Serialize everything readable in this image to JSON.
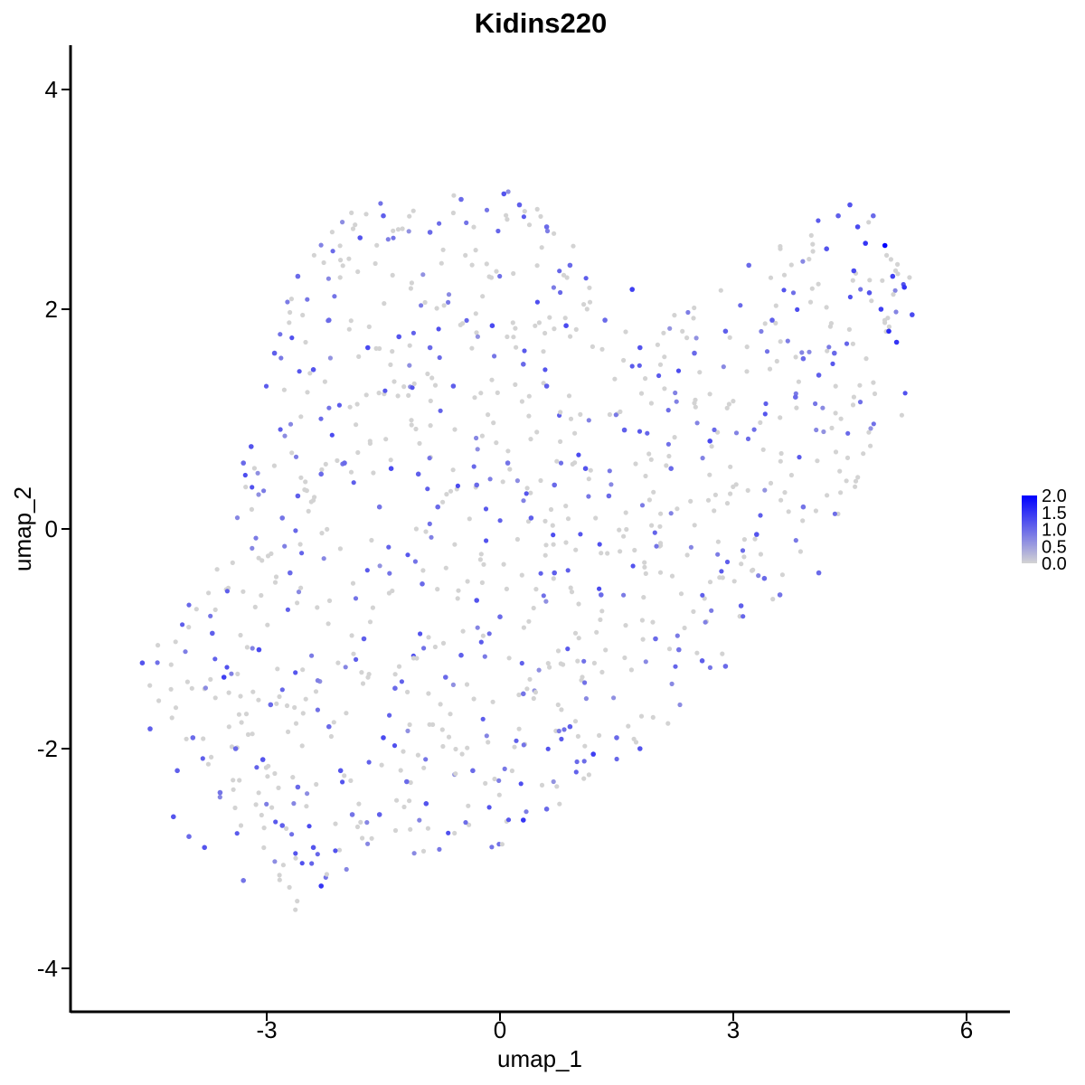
{
  "chart_data": {
    "type": "scatter",
    "title": "Kidins220",
    "xlabel": "umap_1",
    "ylabel": "umap_2",
    "xlim": [
      -5.45,
      6.55
    ],
    "ylim": [
      -4.35,
      4.4
    ],
    "xticks": [
      -3,
      0,
      3,
      6
    ],
    "xtick_labels": [
      "-3",
      "0",
      "3",
      "6"
    ],
    "yticks": [
      -4,
      -2,
      0,
      2,
      4
    ],
    "ytick_labels": [
      "-4",
      "-2",
      "0",
      "2",
      "4"
    ],
    "grid": false,
    "color_scale": {
      "low_color": "#d3d3d3",
      "high_color": "#0000ff",
      "min": 0,
      "max": 2.0,
      "ticks": [
        2.0,
        1.5,
        1.0,
        0.5,
        0.0
      ],
      "tick_labels": [
        "2.0",
        "1.5",
        "1.0",
        "0.5",
        "0.0"
      ],
      "legend_position": "right"
    },
    "points_note_free": true,
    "points": [
      [
        -4.6,
        -1.22,
        1.2
      ],
      [
        -4.5,
        -1.82,
        1.1
      ],
      [
        -4.2,
        -2.62,
        1.2
      ],
      [
        -4.0,
        -2.8,
        1.0
      ],
      [
        -3.8,
        -2.9,
        1.2
      ],
      [
        -3.6,
        -2.4,
        0.9
      ],
      [
        -3.55,
        -1.35,
        1.4
      ],
      [
        -3.3,
        -3.2,
        0.9
      ],
      [
        -3.1,
        -1.1,
        1.3
      ],
      [
        -3.05,
        -2.1,
        1.2
      ],
      [
        -2.95,
        -1.6,
        1.0
      ],
      [
        -2.8,
        -2.7,
        1.1
      ],
      [
        -2.6,
        -2.35,
        1.0
      ],
      [
        -2.4,
        -2.9,
        1.2
      ],
      [
        -2.3,
        -3.25,
        1.5
      ],
      [
        -2.2,
        -1.8,
        1.0
      ],
      [
        -2.05,
        -2.2,
        1.2
      ],
      [
        -1.9,
        -2.6,
        0.9
      ],
      [
        -1.55,
        -2.6,
        1.1
      ],
      [
        -1.5,
        -1.9,
        1.3
      ],
      [
        -1.2,
        -2.3,
        1.0
      ],
      [
        -0.95,
        -2.5,
        1.2
      ],
      [
        -0.7,
        -1.35,
        1.0
      ],
      [
        -0.5,
        -1.15,
        1.1
      ],
      [
        -0.3,
        -0.65,
        1.2
      ],
      [
        0.0,
        -0.8,
        1.0
      ],
      [
        0.3,
        -1.5,
        0.9
      ],
      [
        0.3,
        -2.65,
        1.5
      ],
      [
        0.6,
        -2.55,
        1.0
      ],
      [
        0.9,
        -1.8,
        1.1
      ],
      [
        1.2,
        -2.05,
        1.4
      ],
      [
        1.5,
        -1.9,
        1.0
      ],
      [
        1.8,
        -2.0,
        1.2
      ],
      [
        2.0,
        -1.0,
        1.0
      ],
      [
        2.3,
        -1.1,
        0.9
      ],
      [
        2.6,
        -1.2,
        1.1
      ],
      [
        2.9,
        -1.25,
        1.0
      ],
      [
        3.1,
        -0.7,
        1.1
      ],
      [
        3.4,
        -0.45,
        1.0
      ],
      [
        3.6,
        -0.6,
        0.9
      ],
      [
        3.3,
        -0.05,
        1.2
      ],
      [
        3.9,
        0.2,
        0.9
      ],
      [
        4.1,
        -0.4,
        1.0
      ],
      [
        -3.2,
        0.75,
        1.2
      ],
      [
        -3.3,
        0.6,
        1.0
      ],
      [
        -2.8,
        0.1,
        0.9
      ],
      [
        -2.6,
        0.3,
        1.1
      ],
      [
        -2.3,
        0.5,
        1.0
      ],
      [
        -2.0,
        0.6,
        1.0
      ],
      [
        -1.4,
        0.55,
        1.3
      ],
      [
        -1.05,
        0.5,
        1.1
      ],
      [
        -0.8,
        0.2,
        1.0
      ],
      [
        -0.3,
        0.4,
        1.0
      ],
      [
        0.1,
        0.6,
        0.9
      ],
      [
        0.4,
        0.1,
        1.1
      ],
      [
        0.7,
        0.4,
        1.0
      ],
      [
        1.1,
        0.55,
        1.2
      ],
      [
        1.4,
        0.3,
        1.0
      ],
      [
        1.6,
        0.9,
        1.1
      ],
      [
        2.2,
        0.55,
        1.0
      ],
      [
        2.7,
        0.8,
        1.3
      ],
      [
        -2.9,
        1.6,
        1.1
      ],
      [
        -2.4,
        1.45,
        1.2
      ],
      [
        -2.2,
        1.9,
        1.0
      ],
      [
        -1.7,
        1.65,
        1.3
      ],
      [
        -1.3,
        1.75,
        1.2
      ],
      [
        -0.9,
        1.65,
        1.0
      ],
      [
        -0.6,
        1.3,
        1.1
      ],
      [
        -0.1,
        1.85,
        1.3
      ],
      [
        0.3,
        1.5,
        1.0
      ],
      [
        0.6,
        1.3,
        1.1
      ],
      [
        0.85,
        1.85,
        1.3
      ],
      [
        1.35,
        1.9,
        1.0
      ],
      [
        1.8,
        1.65,
        1.2
      ],
      [
        2.5,
        1.6,
        1.0
      ],
      [
        2.9,
        1.8,
        1.1
      ],
      [
        -2.6,
        2.3,
        1.0
      ],
      [
        -1.8,
        2.65,
        1.2
      ],
      [
        -1.5,
        2.85,
        1.1
      ],
      [
        -0.9,
        2.7,
        1.0
      ],
      [
        -0.5,
        3.0,
        1.0
      ],
      [
        0.05,
        3.05,
        1.2
      ],
      [
        0.25,
        2.95,
        1.1
      ],
      [
        0.6,
        2.75,
        1.0
      ],
      [
        0.9,
        2.4,
        1.0
      ],
      [
        1.7,
        2.18,
        1.4
      ],
      [
        3.2,
        2.4,
        1.0
      ],
      [
        3.5,
        1.9,
        1.1
      ],
      [
        3.9,
        1.55,
        1.0
      ],
      [
        4.2,
        2.55,
        1.2
      ],
      [
        4.35,
        2.85,
        1.1
      ],
      [
        4.5,
        2.95,
        1.2
      ],
      [
        4.6,
        2.75,
        1.3
      ],
      [
        4.7,
        2.6,
        1.5
      ],
      [
        4.8,
        2.85,
        1.0
      ],
      [
        4.95,
        2.58,
        2.0
      ],
      [
        5.05,
        2.3,
        1.4
      ],
      [
        5.2,
        2.2,
        1.5
      ],
      [
        5.3,
        1.95,
        1.3
      ],
      [
        4.9,
        2.0,
        1.4
      ],
      [
        5.0,
        1.8,
        1.6
      ],
      [
        5.1,
        1.7,
        1.5
      ],
      [
        4.75,
        2.15,
        1.2
      ],
      [
        4.55,
        2.35,
        1.3
      ],
      [
        4.3,
        1.6,
        1.0
      ],
      [
        4.1,
        1.4,
        1.1
      ],
      [
        3.8,
        1.2,
        1.0
      ],
      [
        -1.55,
        0.2,
        0.9
      ],
      [
        -1.0,
        -0.5,
        1.0
      ],
      [
        0.7,
        -0.4,
        1.1
      ],
      [
        1.3,
        -0.6,
        1.0
      ],
      [
        -3.7,
        -0.95,
        1.1
      ],
      [
        -3.95,
        -1.9,
        1.0
      ],
      [
        -4.15,
        -2.2,
        1.1
      ],
      [
        -3.4,
        -2.0,
        1.0
      ],
      [
        -2.7,
        -0.4,
        1.0
      ],
      [
        -1.75,
        -1.0,
        1.1
      ],
      [
        -1.35,
        -1.45,
        1.0
      ],
      [
        -0.35,
        -2.2,
        1.0
      ]
    ]
  }
}
